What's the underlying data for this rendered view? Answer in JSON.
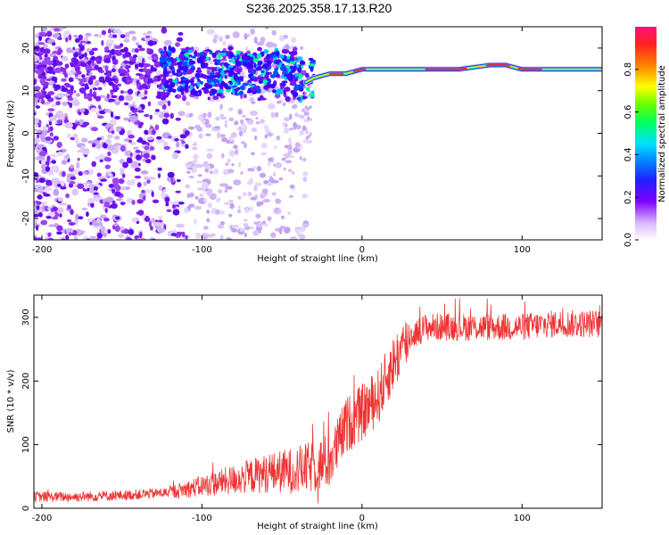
{
  "title": "S236.2025.358.17.13.R20",
  "colors": {
    "snr_line": "#ee3333",
    "scale": [
      "#ffffff",
      "#c8a8f4",
      "#7a00f0",
      "#2a00ff",
      "#0060ff",
      "#00d8ff",
      "#00ff80",
      "#40ff00",
      "#e0ff00",
      "#ff9000",
      "#ff2020",
      "#ff1080"
    ]
  },
  "chart_data": [
    {
      "type": "heatmap",
      "xlabel": "Height of straight line (km)",
      "ylabel": "Frequency (Hz)",
      "xlim": [
        -205,
        150
      ],
      "ylim": [
        -25,
        25
      ],
      "xticks": [
        -200,
        -100,
        0,
        100
      ],
      "yticks": [
        -20,
        -10,
        0,
        10,
        20
      ],
      "carrier_track": {
        "x": [
          -120,
          -100,
          -80,
          -60,
          -45,
          -35,
          -30,
          -20,
          -10,
          0,
          20,
          40,
          60,
          80,
          90,
          100,
          120,
          150
        ],
        "frequency": [
          15,
          14,
          14,
          15,
          14,
          12,
          13,
          14,
          14,
          15,
          15,
          15,
          15,
          16,
          16,
          15,
          15,
          15
        ]
      },
      "colorbar": {
        "label": "Normalized spectral amplitude",
        "range": [
          0,
          1
        ],
        "ticks": [
          0.0,
          0.2,
          0.4,
          0.6,
          0.8
        ]
      }
    },
    {
      "type": "line",
      "xlabel": "Height of straight line (km)",
      "ylabel": "SNR (10 * v/v)",
      "xlim": [
        -205,
        150
      ],
      "ylim": [
        0,
        335
      ],
      "xticks": [
        -200,
        -100,
        0,
        100
      ],
      "yticks": [
        0,
        100,
        200,
        300
      ],
      "series": [
        {
          "x": [
            -205,
            -180,
            -150,
            -120,
            -110,
            -100,
            -80,
            -60,
            -40,
            -30,
            -20,
            -15,
            -10,
            0,
            10,
            20,
            30,
            40,
            60,
            80,
            100,
            120,
            150
          ],
          "values": [
            18,
            18,
            20,
            25,
            30,
            35,
            45,
            55,
            60,
            65,
            75,
            100,
            130,
            150,
            175,
            230,
            270,
            285,
            285,
            285,
            285,
            290,
            290
          ]
        }
      ]
    }
  ]
}
